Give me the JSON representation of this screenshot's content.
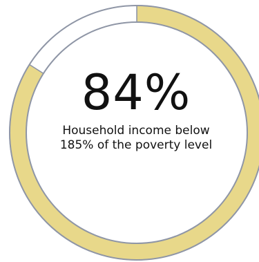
{
  "chart_data": {
    "type": "pie",
    "variant": "donut",
    "slices": [
      {
        "label": "Household income below 185% of the poverty level",
        "value": 84,
        "color": "#e8d88a"
      },
      {
        "label": "",
        "value": 16,
        "color": "#ffffff"
      }
    ],
    "outline_color": "#8f96a6",
    "value_label": "84%",
    "caption_lines": [
      "Household income below",
      "185% of the poverty level"
    ]
  }
}
